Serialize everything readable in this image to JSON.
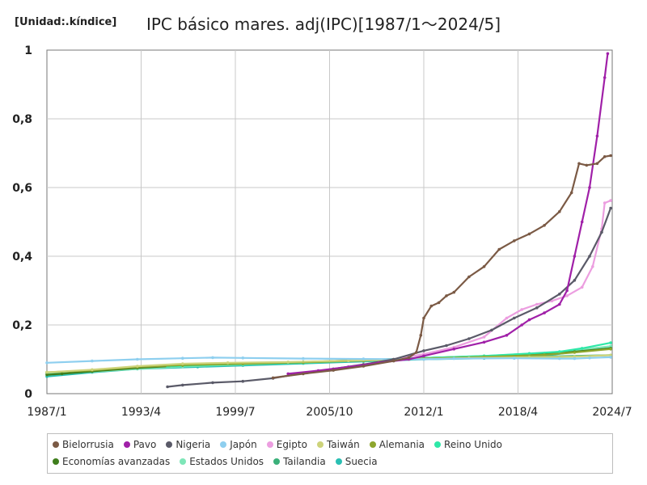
{
  "chart_data": {
    "type": "line",
    "title": "IPC básico mares. adj(IPC)[1987/1～2024/5]",
    "unit_label": "[Unidad:.kíndice]",
    "xlabel": "",
    "ylabel": "",
    "x_ticks": [
      "1987/1",
      "1993/4",
      "1999/7",
      "2005/10",
      "2012/1",
      "2018/4",
      "2024/7"
    ],
    "xlim": [
      1987.0,
      2024.5
    ],
    "y_ticks": [
      "0",
      "0,2",
      "0,4",
      "0,6",
      "0,8",
      "1"
    ],
    "ylim": [
      0,
      1
    ],
    "grid": true,
    "legend_position": "bottom",
    "series": [
      {
        "name": "Bielorrusia",
        "color": "#7b5a45",
        "points": [
          [
            2002.0,
            0.046
          ],
          [
            2004.0,
            0.058
          ],
          [
            2006.0,
            0.068
          ],
          [
            2008.0,
            0.08
          ],
          [
            2010.0,
            0.095
          ],
          [
            2011.0,
            0.105
          ],
          [
            2011.5,
            0.12
          ],
          [
            2011.8,
            0.17
          ],
          [
            2012.0,
            0.22
          ],
          [
            2012.5,
            0.255
          ],
          [
            2013.0,
            0.265
          ],
          [
            2013.5,
            0.285
          ],
          [
            2014.0,
            0.295
          ],
          [
            2015.0,
            0.34
          ],
          [
            2016.0,
            0.37
          ],
          [
            2017.0,
            0.42
          ],
          [
            2018.0,
            0.445
          ],
          [
            2019.0,
            0.465
          ],
          [
            2020.0,
            0.49
          ],
          [
            2021.0,
            0.53
          ],
          [
            2021.8,
            0.585
          ],
          [
            2022.3,
            0.67
          ],
          [
            2022.8,
            0.665
          ],
          [
            2023.5,
            0.67
          ],
          [
            2024.0,
            0.69
          ],
          [
            2024.4,
            0.693
          ]
        ]
      },
      {
        "name": "Pavo",
        "color": "#a020a8",
        "points": [
          [
            2003.0,
            0.058
          ],
          [
            2005.0,
            0.067
          ],
          [
            2007.0,
            0.078
          ],
          [
            2009.0,
            0.09
          ],
          [
            2011.0,
            0.1
          ],
          [
            2012.0,
            0.11
          ],
          [
            2014.0,
            0.13
          ],
          [
            2016.0,
            0.15
          ],
          [
            2017.5,
            0.17
          ],
          [
            2018.5,
            0.2
          ],
          [
            2019.0,
            0.215
          ],
          [
            2020.0,
            0.235
          ],
          [
            2021.0,
            0.26
          ],
          [
            2021.5,
            0.3
          ],
          [
            2022.0,
            0.4
          ],
          [
            2022.5,
            0.5
          ],
          [
            2023.0,
            0.6
          ],
          [
            2023.5,
            0.75
          ],
          [
            2024.0,
            0.92
          ],
          [
            2024.2,
            0.99
          ]
        ]
      },
      {
        "name": "Nigeria",
        "color": "#5a5a68",
        "points": [
          [
            1995.0,
            0.02
          ],
          [
            1996.0,
            0.025
          ],
          [
            1998.0,
            0.032
          ],
          [
            2000.0,
            0.036
          ],
          [
            2002.0,
            0.045
          ],
          [
            2004.0,
            0.06
          ],
          [
            2006.0,
            0.072
          ],
          [
            2008.0,
            0.085
          ],
          [
            2010.0,
            0.1
          ],
          [
            2012.0,
            0.125
          ],
          [
            2013.5,
            0.14
          ],
          [
            2015.0,
            0.16
          ],
          [
            2016.5,
            0.185
          ],
          [
            2018.0,
            0.22
          ],
          [
            2019.5,
            0.25
          ],
          [
            2021.0,
            0.29
          ],
          [
            2022.0,
            0.33
          ],
          [
            2023.0,
            0.4
          ],
          [
            2023.8,
            0.47
          ],
          [
            2024.4,
            0.54
          ]
        ]
      },
      {
        "name": "Japón",
        "color": "#8ecfef",
        "points": [
          [
            1987.0,
            0.09
          ],
          [
            1990.0,
            0.095
          ],
          [
            1993.0,
            0.1
          ],
          [
            1996.0,
            0.103
          ],
          [
            1998.0,
            0.105
          ],
          [
            2000.0,
            0.104
          ],
          [
            2004.0,
            0.102
          ],
          [
            2008.0,
            0.101
          ],
          [
            2012.0,
            0.1
          ],
          [
            2014.0,
            0.102
          ],
          [
            2018.0,
            0.103
          ],
          [
            2021.0,
            0.102
          ],
          [
            2022.0,
            0.102
          ],
          [
            2023.0,
            0.104
          ],
          [
            2024.4,
            0.106
          ]
        ]
      },
      {
        "name": "Egipto",
        "color": "#ec9ee0",
        "points": [
          [
            2010.0,
            0.1
          ],
          [
            2012.0,
            0.115
          ],
          [
            2014.0,
            0.135
          ],
          [
            2016.0,
            0.165
          ],
          [
            2017.5,
            0.22
          ],
          [
            2018.5,
            0.245
          ],
          [
            2019.5,
            0.26
          ],
          [
            2020.5,
            0.27
          ],
          [
            2021.5,
            0.285
          ],
          [
            2022.5,
            0.31
          ],
          [
            2023.2,
            0.37
          ],
          [
            2023.8,
            0.48
          ],
          [
            2024.0,
            0.555
          ],
          [
            2024.4,
            0.562
          ]
        ]
      },
      {
        "name": "Taiwán",
        "color": "#cdd37a",
        "points": [
          [
            1987.0,
            0.062
          ],
          [
            1990.0,
            0.07
          ],
          [
            1993.0,
            0.08
          ],
          [
            1996.0,
            0.087
          ],
          [
            1999.0,
            0.09
          ],
          [
            2003.0,
            0.092
          ],
          [
            2007.0,
            0.096
          ],
          [
            2011.0,
            0.1
          ],
          [
            2015.0,
            0.104
          ],
          [
            2019.0,
            0.106
          ],
          [
            2022.0,
            0.108
          ],
          [
            2024.4,
            0.112
          ]
        ]
      },
      {
        "name": "Alemania",
        "color": "#8ea62e",
        "points": [
          [
            1987.0,
            0.062
          ],
          [
            1990.0,
            0.068
          ],
          [
            1993.0,
            0.078
          ],
          [
            1996.0,
            0.083
          ],
          [
            2000.0,
            0.087
          ],
          [
            2004.0,
            0.091
          ],
          [
            2008.0,
            0.096
          ],
          [
            2012.0,
            0.102
          ],
          [
            2016.0,
            0.107
          ],
          [
            2020.0,
            0.113
          ],
          [
            2022.0,
            0.12
          ],
          [
            2024.4,
            0.13
          ]
        ]
      },
      {
        "name": "Reino Unido",
        "color": "#2ee8a8",
        "points": [
          [
            1995.0,
            0.08
          ],
          [
            2000.0,
            0.086
          ],
          [
            2004.0,
            0.09
          ],
          [
            2008.0,
            0.096
          ],
          [
            2012.0,
            0.104
          ],
          [
            2016.0,
            0.11
          ],
          [
            2019.0,
            0.117
          ],
          [
            2021.0,
            0.122
          ],
          [
            2022.5,
            0.132
          ],
          [
            2024.4,
            0.148
          ]
        ]
      },
      {
        "name": "Economías avanzadas",
        "color": "#3f7e1c",
        "points": [
          [
            1987.0,
            0.055
          ],
          [
            1988.0,
            0.058
          ],
          [
            1990.0,
            0.065
          ],
          [
            1993.0,
            0.075
          ],
          [
            1996.0,
            0.082
          ],
          [
            2000.0,
            0.087
          ],
          [
            2004.0,
            0.092
          ],
          [
            2008.0,
            0.098
          ],
          [
            2012.0,
            0.104
          ],
          [
            2016.0,
            0.109
          ],
          [
            2020.0,
            0.115
          ],
          [
            2022.0,
            0.122
          ],
          [
            2024.4,
            0.132
          ]
        ]
      },
      {
        "name": "Estados Unidos",
        "color": "#7ee6b8",
        "points": [
          [
            1987.0,
            0.058
          ],
          [
            1990.0,
            0.064
          ],
          [
            1993.0,
            0.072
          ],
          [
            1996.0,
            0.079
          ],
          [
            2000.0,
            0.085
          ],
          [
            2004.0,
            0.091
          ],
          [
            2008.0,
            0.097
          ],
          [
            2012.0,
            0.104
          ],
          [
            2016.0,
            0.11
          ],
          [
            2020.0,
            0.118
          ],
          [
            2022.0,
            0.126
          ],
          [
            2024.4,
            0.138
          ]
        ]
      },
      {
        "name": "Tailandia",
        "color": "#3bb07a",
        "points": [
          [
            1987.0,
            0.06
          ],
          [
            1990.0,
            0.066
          ],
          [
            1993.0,
            0.075
          ],
          [
            1997.0,
            0.082
          ],
          [
            2000.0,
            0.088
          ],
          [
            2004.0,
            0.092
          ],
          [
            2008.0,
            0.097
          ],
          [
            2012.0,
            0.103
          ],
          [
            2016.0,
            0.106
          ],
          [
            2020.0,
            0.108
          ],
          [
            2024.4,
            0.112
          ]
        ]
      },
      {
        "name": "Suecia",
        "color": "#2abfb3",
        "points": [
          [
            1987.0,
            0.05
          ],
          [
            1990.0,
            0.062
          ],
          [
            1993.0,
            0.072
          ],
          [
            1997.0,
            0.078
          ],
          [
            2000.0,
            0.082
          ],
          [
            2004.0,
            0.088
          ],
          [
            2008.0,
            0.094
          ],
          [
            2012.0,
            0.1
          ],
          [
            2016.0,
            0.103
          ],
          [
            2020.0,
            0.11
          ],
          [
            2022.0,
            0.122
          ],
          [
            2024.4,
            0.138
          ]
        ]
      }
    ]
  }
}
